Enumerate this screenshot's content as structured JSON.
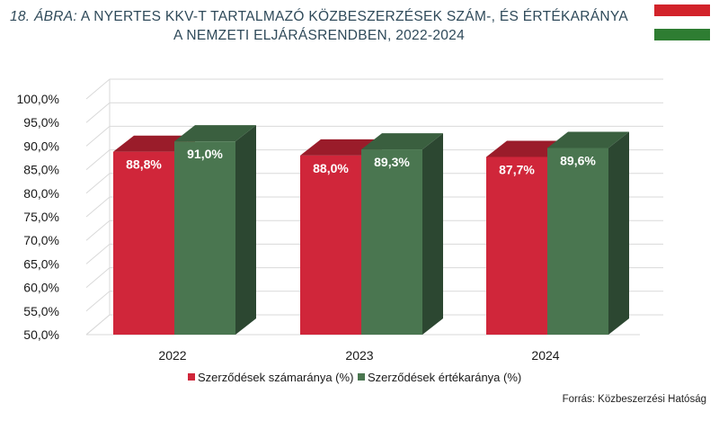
{
  "title": {
    "number": "18. ÁBRA:",
    "line1": "A NYERTES KKV-T TARTALMAZÓ KÖZBESZERZÉSEK SZÁM-, ÉS ÉRTÉKARÁNYA",
    "line2": "A NEMZETI ELJÁRÁSRENDBEN, 2022-2024"
  },
  "flag": {
    "top_color": "#d2232a",
    "bottom_color": "#2e7d32"
  },
  "source": "Forrás: Közbeszerzési Hatóság",
  "chart_data": {
    "type": "bar",
    "style": "3d-clustered-column",
    "categories": [
      "2022",
      "2023",
      "2024"
    ],
    "series": [
      {
        "name": "Szerződések számaránya (%)",
        "values": [
          88.8,
          88.0,
          87.7
        ],
        "labels": [
          "88,8%",
          "88,0%",
          "87,7%"
        ],
        "color": "#d0263a",
        "top_color": "#9a1c2a",
        "side_color": "#a81e2e"
      },
      {
        "name": "Szerződések értékaránya (%)",
        "values": [
          91.0,
          89.3,
          89.6
        ],
        "labels": [
          "91,0%",
          "89,3%",
          "89,6%"
        ],
        "color": "#4a7650",
        "top_color": "#3a5f3f",
        "side_color": "#2c4731"
      }
    ],
    "ylim": [
      50,
      100
    ],
    "ytick_step": 5,
    "yticks": [
      "50,0%",
      "55,0%",
      "60,0%",
      "65,0%",
      "70,0%",
      "75,0%",
      "80,0%",
      "85,0%",
      "90,0%",
      "95,0%",
      "100,0%"
    ],
    "grid": true,
    "legend_position": "bottom-center",
    "xlabel": "",
    "ylabel": ""
  }
}
